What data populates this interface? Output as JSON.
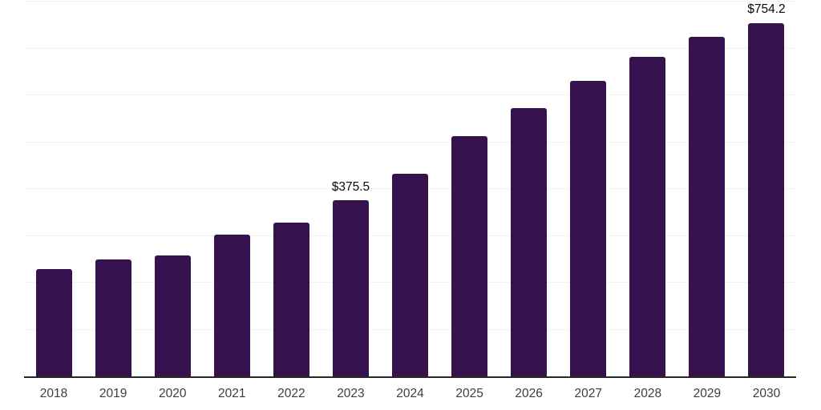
{
  "chart_data": {
    "type": "bar",
    "categories": [
      "2018",
      "2019",
      "2020",
      "2021",
      "2022",
      "2023",
      "2024",
      "2025",
      "2026",
      "2027",
      "2028",
      "2029",
      "2030"
    ],
    "values": [
      229,
      249,
      258,
      302,
      329,
      375.5,
      432,
      513,
      572,
      630,
      682,
      724,
      754.2
    ],
    "annotations": [
      {
        "category": "2023",
        "text": "$375.5"
      },
      {
        "category": "2030",
        "text": "$754.2"
      }
    ],
    "xlabel": "",
    "ylabel": "",
    "ylim": [
      0,
      800
    ],
    "gridline_step": 100,
    "grid": "horizontal, faint, no y-axis tick labels",
    "legend": "none"
  },
  "style": {
    "bar_color": "#35114D",
    "axis_color": "#262626",
    "grid_color": "#f3f3f3",
    "tick_label_color": "#3d3d3d",
    "data_label_color": "#0a0a0a",
    "background_color": "#ffffff"
  }
}
